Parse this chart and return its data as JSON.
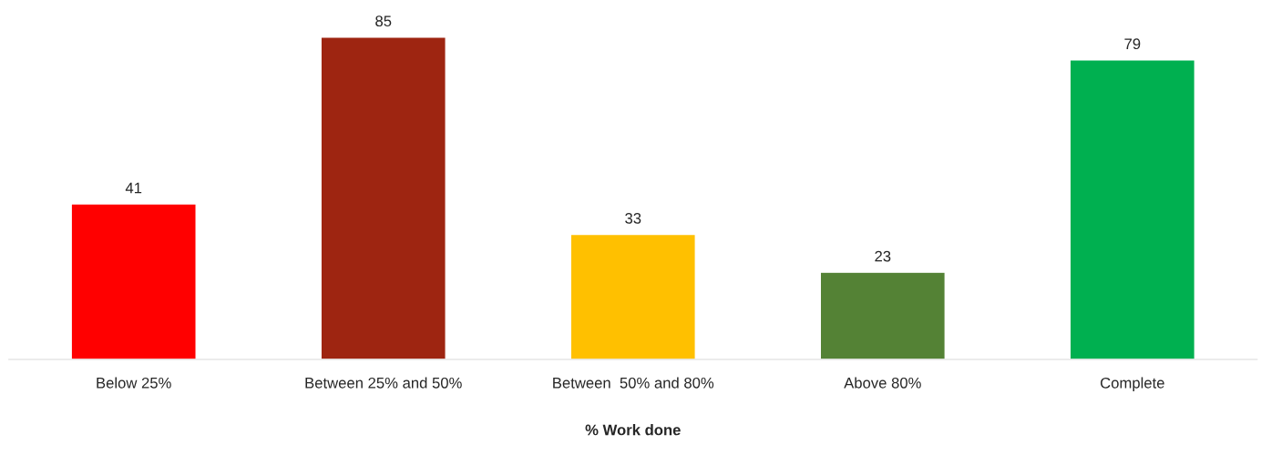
{
  "chart_data": {
    "type": "bar",
    "xlabel": "% Work done",
    "categories": [
      "Below 25%",
      "Between 25% and 50%",
      "Between  50% and 80%",
      "Above 80%",
      "Complete"
    ],
    "values": [
      41,
      85,
      33,
      23,
      79
    ],
    "colors": [
      "#ff0000",
      "#9e2511",
      "#ffc000",
      "#548235",
      "#00b050"
    ],
    "data_labels": true,
    "grid": false,
    "legend": false
  }
}
